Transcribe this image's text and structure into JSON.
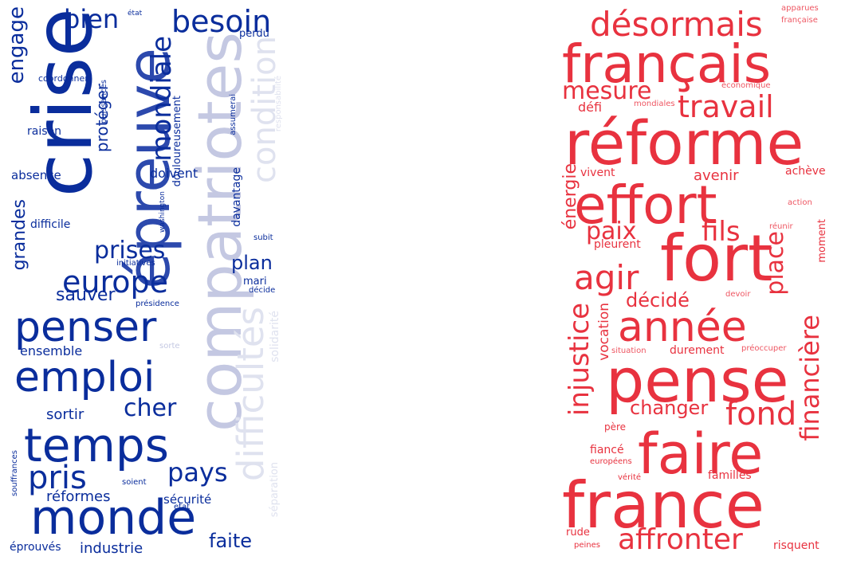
{
  "colors": {
    "blue_strong": "#0a2d9c",
    "blue_mid": "#2c49ad",
    "blue_light": "#c4c8e2",
    "blue_pale": "#dfe2ef",
    "red": "#e8323f",
    "red_soft": "#ee5662"
  },
  "chart_data": [
    {
      "type": "wordcloud",
      "words": [
        {
          "text": "crise",
          "weight": 100,
          "tone": "blue_strong",
          "vertical": true
        },
        {
          "text": "épreuve",
          "weight": 74,
          "tone": "blue_mid",
          "vertical": true
        },
        {
          "text": "compatriotes",
          "weight": 76,
          "tone": "blue_light",
          "vertical": true
        },
        {
          "text": "condition",
          "weight": 40,
          "tone": "blue_pale",
          "vertical": true
        },
        {
          "text": "difficultés",
          "weight": 45,
          "tone": "blue_pale",
          "vertical": true
        },
        {
          "text": "besoin",
          "weight": 38,
          "tone": "blue_strong",
          "vertical": false
        },
        {
          "text": "bien",
          "weight": 32,
          "tone": "blue_strong",
          "vertical": false
        },
        {
          "text": "mondiale",
          "weight": 34,
          "tone": "blue_strong",
          "vertical": true
        },
        {
          "text": "engage",
          "weight": 26,
          "tone": "blue_strong",
          "vertical": true
        },
        {
          "text": "penser",
          "weight": 52,
          "tone": "blue_strong",
          "vertical": false
        },
        {
          "text": "emploi",
          "weight": 52,
          "tone": "blue_strong",
          "vertical": false
        },
        {
          "text": "temps",
          "weight": 58,
          "tone": "blue_strong",
          "vertical": false
        },
        {
          "text": "monde",
          "weight": 60,
          "tone": "blue_strong",
          "vertical": false
        },
        {
          "text": "europe",
          "weight": 38,
          "tone": "blue_strong",
          "vertical": false
        },
        {
          "text": "prises",
          "weight": 30,
          "tone": "blue_strong",
          "vertical": false
        },
        {
          "text": "pris",
          "weight": 40,
          "tone": "blue_strong",
          "vertical": false
        },
        {
          "text": "cher",
          "weight": 30,
          "tone": "blue_strong",
          "vertical": false
        },
        {
          "text": "pays",
          "weight": 32,
          "tone": "blue_strong",
          "vertical": false
        },
        {
          "text": "plan",
          "weight": 24,
          "tone": "blue_strong",
          "vertical": false
        },
        {
          "text": "sauver",
          "weight": 22,
          "tone": "blue_strong",
          "vertical": false
        },
        {
          "text": "grandes",
          "weight": 22,
          "tone": "blue_strong",
          "vertical": true
        },
        {
          "text": "protéger",
          "weight": 20,
          "tone": "blue_strong",
          "vertical": true
        },
        {
          "text": "faite",
          "weight": 24,
          "tone": "blue_strong",
          "vertical": false
        },
        {
          "text": "réformes",
          "weight": 18,
          "tone": "blue_strong",
          "vertical": false
        },
        {
          "text": "sortir",
          "weight": 18,
          "tone": "blue_strong",
          "vertical": false
        },
        {
          "text": "industrie",
          "weight": 18,
          "tone": "blue_strong",
          "vertical": false
        },
        {
          "text": "ensemble",
          "weight": 16,
          "tone": "blue_strong",
          "vertical": false
        },
        {
          "text": "davantage",
          "weight": 14,
          "tone": "blue_strong",
          "vertical": true
        },
        {
          "text": "douloureusement",
          "weight": 13,
          "tone": "blue_strong",
          "vertical": true
        },
        {
          "text": "doivent",
          "weight": 16,
          "tone": "blue_strong",
          "vertical": false
        },
        {
          "text": "sécurité",
          "weight": 15,
          "tone": "blue_strong",
          "vertical": false
        },
        {
          "text": "absence",
          "weight": 15,
          "tone": "blue_strong",
          "vertical": false
        },
        {
          "text": "raison",
          "weight": 14,
          "tone": "blue_strong",
          "vertical": false
        },
        {
          "text": "difficile",
          "weight": 14,
          "tone": "blue_strong",
          "vertical": false
        },
        {
          "text": "perdu",
          "weight": 13,
          "tone": "blue_strong",
          "vertical": false
        },
        {
          "text": "mari",
          "weight": 13,
          "tone": "blue_strong",
          "vertical": false
        },
        {
          "text": "éprouvés",
          "weight": 14,
          "tone": "blue_strong",
          "vertical": false
        },
        {
          "text": "coordonner",
          "weight": 11,
          "tone": "blue_strong",
          "vertical": false
        },
        {
          "text": "puissances",
          "weight": 10,
          "tone": "blue_strong",
          "vertical": true
        },
        {
          "text": "assumerai",
          "weight": 10,
          "tone": "blue_strong",
          "vertical": true
        },
        {
          "text": "washington",
          "weight": 9,
          "tone": "blue_strong",
          "vertical": true
        },
        {
          "text": "souffrances",
          "weight": 10,
          "tone": "blue_strong",
          "vertical": true
        },
        {
          "text": "initiatives",
          "weight": 10,
          "tone": "blue_strong",
          "vertical": false
        },
        {
          "text": "présidence",
          "weight": 10,
          "tone": "blue_strong",
          "vertical": false
        },
        {
          "text": "subit",
          "weight": 10,
          "tone": "blue_strong",
          "vertical": false
        },
        {
          "text": "décide",
          "weight": 10,
          "tone": "blue_strong",
          "vertical": false
        },
        {
          "text": "sorte",
          "weight": 10,
          "tone": "blue_light",
          "vertical": false
        },
        {
          "text": "soient",
          "weight": 10,
          "tone": "blue_strong",
          "vertical": false
        },
        {
          "text": "état",
          "weight": 9,
          "tone": "blue_strong",
          "vertical": false
        },
        {
          "text": "etat",
          "weight": 10,
          "tone": "blue_strong",
          "vertical": false
        },
        {
          "text": "responsabilité",
          "weight": 10,
          "tone": "blue_pale",
          "vertical": true
        },
        {
          "text": "solidarité",
          "weight": 14,
          "tone": "blue_pale",
          "vertical": true
        },
        {
          "text": "séparation",
          "weight": 13,
          "tone": "blue_pale",
          "vertical": true
        }
      ]
    },
    {
      "type": "wordcloud",
      "words": [
        {
          "text": "français",
          "weight": 66,
          "tone": "red",
          "vertical": false
        },
        {
          "text": "réforme",
          "weight": 76,
          "tone": "red",
          "vertical": false
        },
        {
          "text": "désormais",
          "weight": 42,
          "tone": "red",
          "vertical": false
        },
        {
          "text": "effort",
          "weight": 66,
          "tone": "red",
          "vertical": false
        },
        {
          "text": "fort",
          "weight": 80,
          "tone": "red",
          "vertical": false
        },
        {
          "text": "pense",
          "weight": 76,
          "tone": "red",
          "vertical": false
        },
        {
          "text": "faire",
          "weight": 70,
          "tone": "red",
          "vertical": false
        },
        {
          "text": "france",
          "weight": 80,
          "tone": "red",
          "vertical": false
        },
        {
          "text": "année",
          "weight": 52,
          "tone": "red",
          "vertical": false
        },
        {
          "text": "travail",
          "weight": 38,
          "tone": "red",
          "vertical": false
        },
        {
          "text": "mesure",
          "weight": 30,
          "tone": "red",
          "vertical": false
        },
        {
          "text": "agir",
          "weight": 42,
          "tone": "red",
          "vertical": false
        },
        {
          "text": "fils",
          "weight": 34,
          "tone": "red",
          "vertical": false
        },
        {
          "text": "paix",
          "weight": 30,
          "tone": "red",
          "vertical": false
        },
        {
          "text": "place",
          "weight": 30,
          "tone": "red",
          "vertical": true
        },
        {
          "text": "injustice",
          "weight": 34,
          "tone": "red",
          "vertical": true
        },
        {
          "text": "financière",
          "weight": 32,
          "tone": "red",
          "vertical": true
        },
        {
          "text": "fond",
          "weight": 40,
          "tone": "red",
          "vertical": false
        },
        {
          "text": "changer",
          "weight": 24,
          "tone": "red",
          "vertical": false
        },
        {
          "text": "affronter",
          "weight": 36,
          "tone": "red",
          "vertical": false
        },
        {
          "text": "décidé",
          "weight": 24,
          "tone": "red",
          "vertical": false
        },
        {
          "text": "énergie",
          "weight": 22,
          "tone": "red",
          "vertical": true
        },
        {
          "text": "avenir",
          "weight": 18,
          "tone": "red",
          "vertical": false
        },
        {
          "text": "vocation",
          "weight": 17,
          "tone": "red",
          "vertical": true
        },
        {
          "text": "défi",
          "weight": 16,
          "tone": "red",
          "vertical": false
        },
        {
          "text": "durement",
          "weight": 14,
          "tone": "red",
          "vertical": false
        },
        {
          "text": "vivent",
          "weight": 14,
          "tone": "red",
          "vertical": false
        },
        {
          "text": "achève",
          "weight": 14,
          "tone": "red",
          "vertical": false
        },
        {
          "text": "moment",
          "weight": 13,
          "tone": "red",
          "vertical": true
        },
        {
          "text": "pleurent",
          "weight": 14,
          "tone": "red",
          "vertical": false
        },
        {
          "text": "familles",
          "weight": 14,
          "tone": "red",
          "vertical": false
        },
        {
          "text": "fiancé",
          "weight": 14,
          "tone": "red",
          "vertical": false
        },
        {
          "text": "rude",
          "weight": 13,
          "tone": "red",
          "vertical": false
        },
        {
          "text": "risquent",
          "weight": 14,
          "tone": "red",
          "vertical": false
        },
        {
          "text": "apparues",
          "weight": 10,
          "tone": "red_soft",
          "vertical": false
        },
        {
          "text": "française",
          "weight": 10,
          "tone": "red_soft",
          "vertical": false
        },
        {
          "text": "économique",
          "weight": 10,
          "tone": "red_soft",
          "vertical": false
        },
        {
          "text": "mondiales",
          "weight": 10,
          "tone": "red_soft",
          "vertical": false
        },
        {
          "text": "action",
          "weight": 10,
          "tone": "red_soft",
          "vertical": false
        },
        {
          "text": "réunir",
          "weight": 10,
          "tone": "red_soft",
          "vertical": false
        },
        {
          "text": "devoir",
          "weight": 10,
          "tone": "red_soft",
          "vertical": false
        },
        {
          "text": "situation",
          "weight": 10,
          "tone": "red_soft",
          "vertical": false
        },
        {
          "text": "préoccuper",
          "weight": 10,
          "tone": "red_soft",
          "vertical": false
        },
        {
          "text": "père",
          "weight": 12,
          "tone": "red",
          "vertical": false
        },
        {
          "text": "européens",
          "weight": 10,
          "tone": "red",
          "vertical": false
        },
        {
          "text": "vérité",
          "weight": 10,
          "tone": "red",
          "vertical": false
        },
        {
          "text": "peines",
          "weight": 10,
          "tone": "red",
          "vertical": false
        }
      ]
    }
  ]
}
